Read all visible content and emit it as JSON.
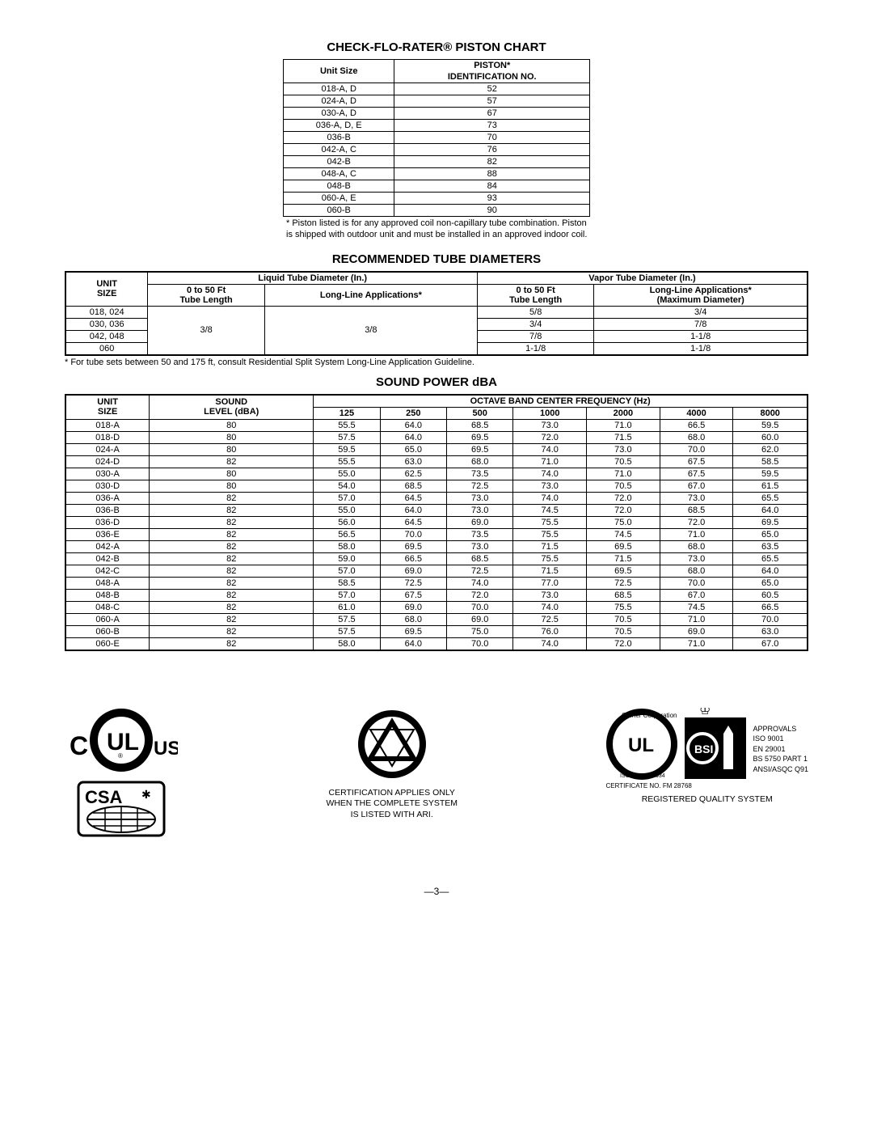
{
  "piston": {
    "title": "CHECK-FLO-RATER® PISTON CHART",
    "headers": {
      "col1": "Unit Size",
      "col2_top": "PISTON*",
      "col2_bot": "IDENTIFICATION NO."
    },
    "rows": [
      {
        "unit": "018-A, D",
        "id": "52"
      },
      {
        "unit": "024-A, D",
        "id": "57"
      },
      {
        "unit": "030-A, D",
        "id": "67"
      },
      {
        "unit": "036-A, D, E",
        "id": "73"
      },
      {
        "unit": "036-B",
        "id": "70"
      },
      {
        "unit": "042-A, C",
        "id": "76"
      },
      {
        "unit": "042-B",
        "id": "82"
      },
      {
        "unit": "048-A, C",
        "id": "88"
      },
      {
        "unit": "048-B",
        "id": "84"
      },
      {
        "unit": "060-A, E",
        "id": "93"
      },
      {
        "unit": "060-B",
        "id": "90"
      }
    ],
    "note": "* Piston listed is for any approved coil non-capillary tube combination. Piston is shipped with outdoor unit and must be installed in an approved indoor coil."
  },
  "tube": {
    "title": "RECOMMENDED TUBE DIAMETERS",
    "top_headers": {
      "unit": "UNIT\nSIZE",
      "liquid": "Liquid Tube Diameter (In.)",
      "vapor": "Vapor Tube Diameter (In.)",
      "l50": "0 to 50 Ft\nTube Length",
      "llong": "Long-Line Applications*",
      "v50": "0 to 50 Ft\nTube Length",
      "vlong": "Long-Line Applications*\n(Maximum Diameter)"
    },
    "rows": [
      {
        "unit": "018, 024",
        "v50": "5/8",
        "vlong": "3/4"
      },
      {
        "unit": "030, 036",
        "v50": "3/4",
        "vlong": "7/8"
      },
      {
        "unit": "042, 048",
        "v50": "7/8",
        "vlong": "1-1/8"
      },
      {
        "unit": "060",
        "v50": "1-1/8",
        "vlong": "1-1/8"
      }
    ],
    "liquid_val": "3/8",
    "note": "* For tube sets between 50 and 175 ft, consult Residential Split System Long-Line Application Guideline."
  },
  "sound": {
    "title": "SOUND POWER dBA",
    "headers": {
      "unit": "UNIT\nSIZE",
      "level": "SOUND\nLEVEL (dBA)",
      "octave": "OCTAVE BAND CENTER FREQUENCY (Hz)",
      "freqs": [
        "125",
        "250",
        "500",
        "1000",
        "2000",
        "4000",
        "8000"
      ]
    },
    "rows": [
      {
        "u": "018-A",
        "l": "80",
        "v": [
          "55.5",
          "64.0",
          "68.5",
          "73.0",
          "71.0",
          "66.5",
          "59.5"
        ]
      },
      {
        "u": "018-D",
        "l": "80",
        "v": [
          "57.5",
          "64.0",
          "69.5",
          "72.0",
          "71.5",
          "68.0",
          "60.0"
        ]
      },
      {
        "u": "024-A",
        "l": "80",
        "v": [
          "59.5",
          "65.0",
          "69.5",
          "74.0",
          "73.0",
          "70.0",
          "62.0"
        ]
      },
      {
        "u": "024-D",
        "l": "82",
        "v": [
          "55.5",
          "63.0",
          "68.0",
          "71.0",
          "70.5",
          "67.5",
          "58.5"
        ]
      },
      {
        "u": "030-A",
        "l": "80",
        "v": [
          "55.0",
          "62.5",
          "73.5",
          "74.0",
          "71.0",
          "67.5",
          "59.5"
        ]
      },
      {
        "u": "030-D",
        "l": "80",
        "v": [
          "54.0",
          "68.5",
          "72.5",
          "73.0",
          "70.5",
          "67.0",
          "61.5"
        ]
      },
      {
        "u": "036-A",
        "l": "82",
        "v": [
          "57.0",
          "64.5",
          "73.0",
          "74.0",
          "72.0",
          "73.0",
          "65.5"
        ]
      },
      {
        "u": "036-B",
        "l": "82",
        "v": [
          "55.0",
          "64.0",
          "73.0",
          "74.5",
          "72.0",
          "68.5",
          "64.0"
        ]
      },
      {
        "u": "036-D",
        "l": "82",
        "v": [
          "56.0",
          "64.5",
          "69.0",
          "75.5",
          "75.0",
          "72.0",
          "69.5"
        ]
      },
      {
        "u": "036-E",
        "l": "82",
        "v": [
          "56.5",
          "70.0",
          "73.5",
          "75.5",
          "74.5",
          "71.0",
          "65.0"
        ]
      },
      {
        "u": "042-A",
        "l": "82",
        "v": [
          "58.0",
          "69.5",
          "73.0",
          "71.5",
          "69.5",
          "68.0",
          "63.5"
        ]
      },
      {
        "u": "042-B",
        "l": "82",
        "v": [
          "59.0",
          "66.5",
          "68.5",
          "75.5",
          "71.5",
          "73.0",
          "65.5"
        ]
      },
      {
        "u": "042-C",
        "l": "82",
        "v": [
          "57.0",
          "69.0",
          "72.5",
          "71.5",
          "69.5",
          "68.0",
          "64.0"
        ]
      },
      {
        "u": "048-A",
        "l": "82",
        "v": [
          "58.5",
          "72.5",
          "74.0",
          "77.0",
          "72.5",
          "70.0",
          "65.0"
        ]
      },
      {
        "u": "048-B",
        "l": "82",
        "v": [
          "57.0",
          "67.5",
          "72.0",
          "73.0",
          "68.5",
          "67.0",
          "60.5"
        ]
      },
      {
        "u": "048-C",
        "l": "82",
        "v": [
          "61.0",
          "69.0",
          "70.0",
          "74.0",
          "75.5",
          "74.5",
          "66.5"
        ]
      },
      {
        "u": "060-A",
        "l": "82",
        "v": [
          "57.5",
          "68.0",
          "69.0",
          "72.5",
          "70.5",
          "71.0",
          "70.0"
        ]
      },
      {
        "u": "060-B",
        "l": "82",
        "v": [
          "57.5",
          "69.5",
          "75.0",
          "76.0",
          "70.5",
          "69.0",
          "63.0"
        ]
      },
      {
        "u": "060-E",
        "l": "82",
        "v": [
          "58.0",
          "64.0",
          "70.0",
          "74.0",
          "72.0",
          "71.0",
          "67.0"
        ]
      }
    ]
  },
  "certs": {
    "ari_text": "CERTIFICATION APPLIES ONLY\nWHEN THE COMPLETE SYSTEM\nIS LISTED WITH ARI.",
    "quality_text": "REGISTERED QUALITY SYSTEM",
    "cert_no": "CERTIFICATE NO. FM 28768",
    "approvals_title": "APPROVALS",
    "approvals": [
      "ISO 9001",
      "EN 29001",
      "BS 5750 PART 1",
      "ANSI/ASQC Q91"
    ]
  },
  "page_num": "—3—"
}
